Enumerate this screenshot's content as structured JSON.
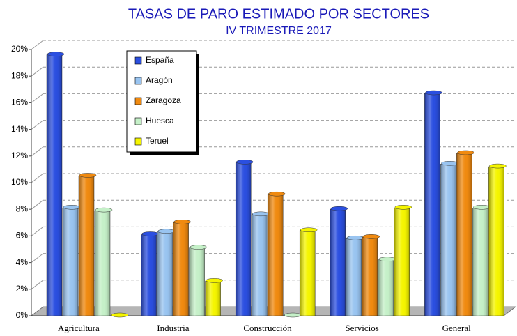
{
  "chart_data": {
    "type": "bar",
    "title": "TASAS DE PARO ESTIMADO POR SECTORES",
    "subtitle": "IV TRIMESTRE 2017",
    "categories": [
      "Agricultura",
      "Industria",
      "Construcción",
      "Servicios",
      "General"
    ],
    "series": [
      {
        "name": "España",
        "color": "#2b4fe0",
        "values": [
          19.6,
          6.1,
          11.5,
          8.0,
          16.7
        ]
      },
      {
        "name": "Aragón",
        "color": "#99c4f0",
        "values": [
          8.1,
          6.3,
          7.6,
          5.8,
          11.4
        ]
      },
      {
        "name": "Zaragoza",
        "color": "#f08a10",
        "values": [
          10.5,
          7.0,
          9.1,
          5.9,
          12.2
        ]
      },
      {
        "name": "Huesca",
        "color": "#c5f0c8",
        "values": [
          7.9,
          5.1,
          0,
          4.2,
          8.1
        ]
      },
      {
        "name": "Teruel",
        "color": "#f5f500",
        "values": [
          0,
          2.6,
          6.4,
          8.1,
          11.2
        ]
      }
    ],
    "ylim": [
      0,
      20
    ],
    "yticks": [
      {
        "value": 0,
        "label": "0%"
      },
      {
        "value": 2,
        "label": "2%"
      },
      {
        "value": 4,
        "label": "4%"
      },
      {
        "value": 6,
        "label": "6%"
      },
      {
        "value": 8,
        "label": "8%"
      },
      {
        "value": 10,
        "label": "10%"
      },
      {
        "value": 12,
        "label": "12%"
      },
      {
        "value": 14,
        "label": "14%"
      },
      {
        "value": 16,
        "label": "16%"
      },
      {
        "value": 18,
        "label": "18%"
      },
      {
        "value": 20,
        "label": "20%"
      }
    ],
    "grid": true
  }
}
